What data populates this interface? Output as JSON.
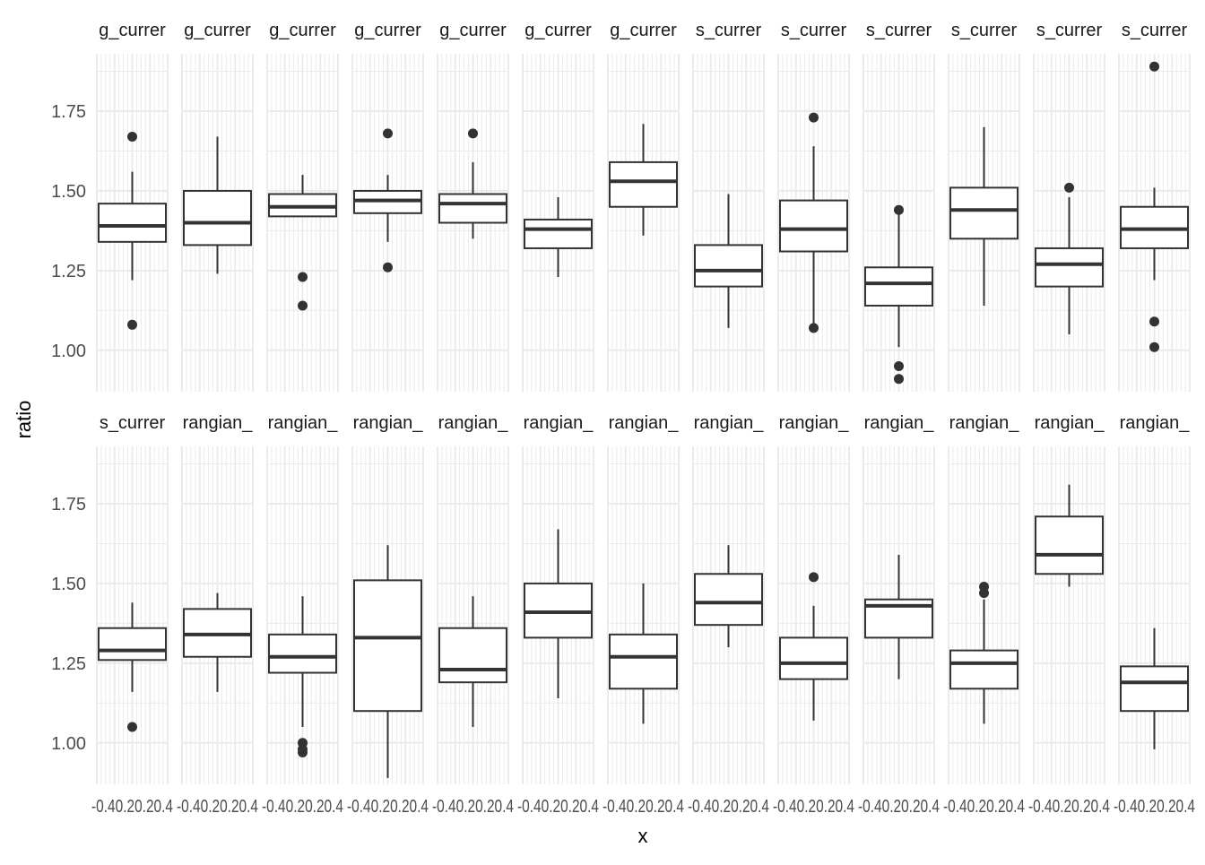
{
  "chart_data": {
    "type": "boxplot",
    "facet_layout": "2 rows x 13 columns",
    "ylabel": "ratio",
    "xlabel": "x",
    "ylim": [
      0.87,
      1.93
    ],
    "xlim": [
      -0.4,
      0.4
    ],
    "y_ticks": [
      "1.00",
      "1.25",
      "1.50",
      "1.75"
    ],
    "x_tick_strip": "-0.40.20.20.4",
    "x_tick_strip_first": "-0.40.20.20.4",
    "x_tick_strip_last": "-0.40.20.20.4",
    "grid": true,
    "box_color": "#333333",
    "grid_color": "#ebebeb",
    "panels": [
      {
        "strip": "g_currer",
        "box": {
          "lower_whisker": 1.22,
          "q1": 1.34,
          "median": 1.39,
          "q3": 1.46,
          "upper_whisker": 1.56
        },
        "outliers": [
          1.67,
          1.08
        ]
      },
      {
        "strip": "g_currer",
        "box": {
          "lower_whisker": 1.24,
          "q1": 1.33,
          "median": 1.4,
          "q3": 1.5,
          "upper_whisker": 1.67
        },
        "outliers": []
      },
      {
        "strip": "g_currer",
        "box": {
          "lower_whisker": 1.42,
          "q1": 1.42,
          "median": 1.45,
          "q3": 1.49,
          "upper_whisker": 1.55
        },
        "outliers": [
          1.23,
          1.14
        ]
      },
      {
        "strip": "g_currer",
        "box": {
          "lower_whisker": 1.34,
          "q1": 1.43,
          "median": 1.47,
          "q3": 1.5,
          "upper_whisker": 1.55
        },
        "outliers": [
          1.68,
          1.26
        ]
      },
      {
        "strip": "g_currer",
        "box": {
          "lower_whisker": 1.35,
          "q1": 1.4,
          "median": 1.46,
          "q3": 1.49,
          "upper_whisker": 1.59
        },
        "outliers": [
          1.68
        ]
      },
      {
        "strip": "g_currer",
        "box": {
          "lower_whisker": 1.23,
          "q1": 1.32,
          "median": 1.38,
          "q3": 1.41,
          "upper_whisker": 1.48
        },
        "outliers": []
      },
      {
        "strip": "g_currer",
        "box": {
          "lower_whisker": 1.36,
          "q1": 1.45,
          "median": 1.53,
          "q3": 1.59,
          "upper_whisker": 1.71
        },
        "outliers": []
      },
      {
        "strip": "s_currer",
        "box": {
          "lower_whisker": 1.07,
          "q1": 1.2,
          "median": 1.25,
          "q3": 1.33,
          "upper_whisker": 1.49
        },
        "outliers": []
      },
      {
        "strip": "s_currer",
        "box": {
          "lower_whisker": 1.07,
          "q1": 1.31,
          "median": 1.38,
          "q3": 1.47,
          "upper_whisker": 1.64
        },
        "outliers": [
          1.73,
          1.07
        ]
      },
      {
        "strip": "s_currer",
        "box": {
          "lower_whisker": 1.01,
          "q1": 1.14,
          "median": 1.21,
          "q3": 1.26,
          "upper_whisker": 1.44
        },
        "outliers": [
          1.44,
          0.95,
          0.91
        ]
      },
      {
        "strip": "s_currer",
        "box": {
          "lower_whisker": 1.14,
          "q1": 1.35,
          "median": 1.44,
          "q3": 1.51,
          "upper_whisker": 1.7
        },
        "outliers": []
      },
      {
        "strip": "s_currer",
        "box": {
          "lower_whisker": 1.05,
          "q1": 1.2,
          "median": 1.27,
          "q3": 1.32,
          "upper_whisker": 1.48
        },
        "outliers": [
          1.51
        ]
      },
      {
        "strip": "s_currer",
        "box": {
          "lower_whisker": 1.22,
          "q1": 1.32,
          "median": 1.38,
          "q3": 1.45,
          "upper_whisker": 1.51
        },
        "outliers": [
          1.89,
          1.09,
          1.01
        ]
      },
      {
        "strip": "s_currer",
        "box": {
          "lower_whisker": 1.16,
          "q1": 1.26,
          "median": 1.29,
          "q3": 1.36,
          "upper_whisker": 1.44
        },
        "outliers": [
          1.05
        ]
      },
      {
        "strip": "rangian_",
        "box": {
          "lower_whisker": 1.16,
          "q1": 1.27,
          "median": 1.34,
          "q3": 1.42,
          "upper_whisker": 1.47
        },
        "outliers": []
      },
      {
        "strip": "rangian_",
        "box": {
          "lower_whisker": 1.05,
          "q1": 1.22,
          "median": 1.27,
          "q3": 1.34,
          "upper_whisker": 1.46
        },
        "outliers": [
          1.0,
          0.98,
          0.97
        ]
      },
      {
        "strip": "rangian_",
        "box": {
          "lower_whisker": 0.89,
          "q1": 1.1,
          "median": 1.33,
          "q3": 1.51,
          "upper_whisker": 1.62
        },
        "outliers": []
      },
      {
        "strip": "rangian_",
        "box": {
          "lower_whisker": 1.05,
          "q1": 1.19,
          "median": 1.23,
          "q3": 1.36,
          "upper_whisker": 1.46
        },
        "outliers": []
      },
      {
        "strip": "rangian_",
        "box": {
          "lower_whisker": 1.14,
          "q1": 1.33,
          "median": 1.41,
          "q3": 1.5,
          "upper_whisker": 1.67
        },
        "outliers": []
      },
      {
        "strip": "rangian_",
        "box": {
          "lower_whisker": 1.06,
          "q1": 1.17,
          "median": 1.27,
          "q3": 1.34,
          "upper_whisker": 1.5
        },
        "outliers": []
      },
      {
        "strip": "rangian_",
        "box": {
          "lower_whisker": 1.3,
          "q1": 1.37,
          "median": 1.44,
          "q3": 1.53,
          "upper_whisker": 1.62
        },
        "outliers": []
      },
      {
        "strip": "rangian_",
        "box": {
          "lower_whisker": 1.07,
          "q1": 1.2,
          "median": 1.25,
          "q3": 1.33,
          "upper_whisker": 1.43
        },
        "outliers": [
          1.52
        ]
      },
      {
        "strip": "rangian_",
        "box": {
          "lower_whisker": 1.2,
          "q1": 1.33,
          "median": 1.43,
          "q3": 1.45,
          "upper_whisker": 1.59
        },
        "outliers": []
      },
      {
        "strip": "rangian_",
        "box": {
          "lower_whisker": 1.06,
          "q1": 1.17,
          "median": 1.25,
          "q3": 1.29,
          "upper_whisker": 1.45
        },
        "outliers": [
          1.49,
          1.47
        ]
      },
      {
        "strip": "rangian_",
        "box": {
          "lower_whisker": 1.49,
          "q1": 1.53,
          "median": 1.59,
          "q3": 1.71,
          "upper_whisker": 1.81
        },
        "outliers": []
      },
      {
        "strip": "rangian_",
        "box": {
          "lower_whisker": 0.98,
          "q1": 1.1,
          "median": 1.19,
          "q3": 1.24,
          "upper_whisker": 1.36
        },
        "outliers": []
      }
    ]
  }
}
